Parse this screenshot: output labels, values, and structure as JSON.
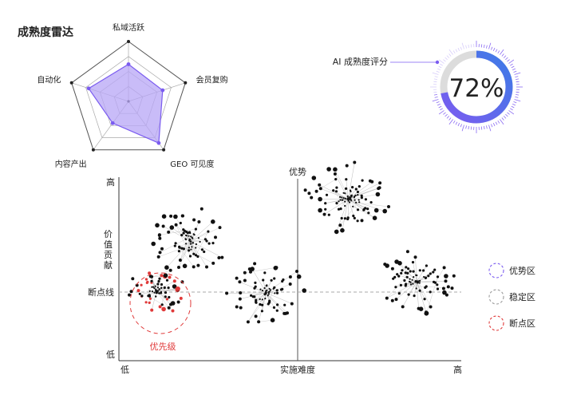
{
  "radar": {
    "title": "成熟度雷达",
    "axes": [
      "私域活跃",
      "会员复购",
      "GEO 可见度",
      "内容产出",
      "自动化"
    ],
    "values": [
      0.62,
      0.6,
      0.86,
      0.45,
      0.7
    ]
  },
  "score": {
    "label": "AI 成熟度评分",
    "value": 72,
    "display": "72%"
  },
  "matrix": {
    "y_axis": {
      "high": "高",
      "low": "低",
      "title": [
        "价",
        "值",
        "贡",
        "献"
      ],
      "threshold_label": "断点线"
    },
    "x_axis": {
      "low": "低",
      "high": "高",
      "title": "实施难度"
    },
    "quadrant_label": "优势",
    "priority_label": "优先级",
    "legend": [
      {
        "label": "优势区",
        "color": "#7b5cf0"
      },
      {
        "label": "稳定区",
        "color": "#9a9a9a"
      },
      {
        "label": "断点区",
        "color": "#e03a3a"
      }
    ]
  },
  "chart_data": [
    {
      "type": "radar",
      "title": "成熟度雷达",
      "categories": [
        "私域活跃",
        "会员复购",
        "GEO 可见度",
        "内容产出",
        "自动化"
      ],
      "values": [
        0.62,
        0.6,
        0.86,
        0.45,
        0.7
      ],
      "range": [
        0,
        1
      ],
      "grid": true
    },
    {
      "type": "gauge",
      "title": "AI 成熟度评分",
      "value": 72,
      "range": [
        0,
        100
      ]
    },
    {
      "type": "scatter",
      "xlabel": "实施难度",
      "ylabel": "价值贡献",
      "xlim": [
        "低",
        "高"
      ],
      "ylim": [
        "低",
        "高"
      ],
      "threshold_label": "断点线",
      "clusters": [
        {
          "zone": "稳定区",
          "x": 0.21,
          "y": 0.65
        },
        {
          "zone": "断点区",
          "x": 0.11,
          "y": 0.38
        },
        {
          "zone": "稳定区",
          "x": 0.43,
          "y": 0.37
        },
        {
          "zone": "优势区",
          "x": 0.67,
          "y": 0.88
        },
        {
          "zone": "稳定区",
          "x": 0.87,
          "y": 0.43
        }
      ]
    }
  ]
}
